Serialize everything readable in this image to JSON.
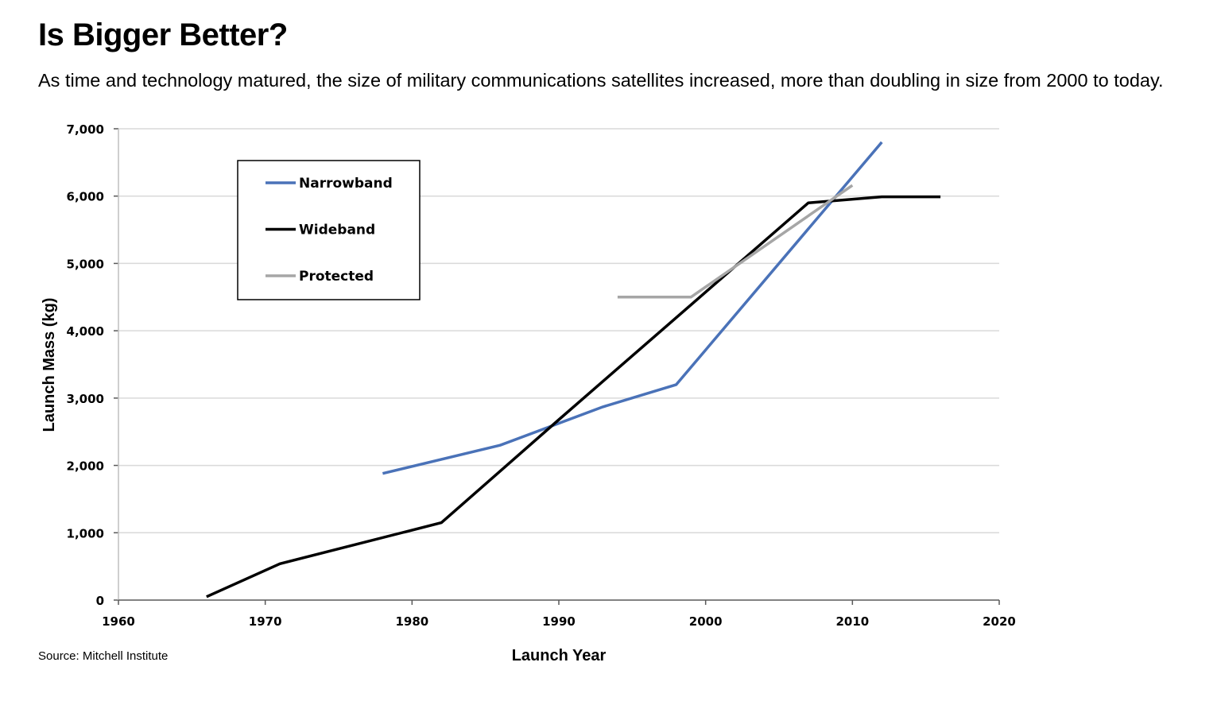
{
  "header": {
    "title": "Is Bigger Better?",
    "subtitle": "As time and technology matured, the size of military communications satellites increased, more than doubling in size from 2000 to today."
  },
  "footer": {
    "source": "Source: Mitchell Institute"
  },
  "chart_data": {
    "type": "line",
    "xlabel": "Launch Year",
    "ylabel": "Launch Mass (kg)",
    "xlim": [
      1960,
      2020
    ],
    "ylim": [
      0,
      7000
    ],
    "x_ticks": [
      1960,
      1970,
      1980,
      1990,
      2000,
      2010,
      2020
    ],
    "x_tick_labels": [
      "1960",
      "1970",
      "1980",
      "1990",
      "2000",
      "2010",
      "2020"
    ],
    "y_ticks": [
      0,
      1000,
      2000,
      3000,
      4000,
      5000,
      6000,
      7000
    ],
    "y_tick_labels": [
      "0",
      "1,000",
      "2,000",
      "3,000",
      "4,000",
      "5,000",
      "6,000",
      "7,000"
    ],
    "grid": "horizontal",
    "legend_position": "top-left",
    "series": [
      {
        "name": "Narrowband",
        "color": "#4a72b8",
        "points": [
          [
            1978,
            1880
          ],
          [
            1986,
            2300
          ],
          [
            1993,
            2870
          ],
          [
            1998,
            3200
          ],
          [
            2012,
            6800
          ]
        ]
      },
      {
        "name": "Wideband",
        "color": "#000000",
        "points": [
          [
            1966,
            50
          ],
          [
            1971,
            540
          ],
          [
            1982,
            1150
          ],
          [
            1990,
            2680
          ],
          [
            2007,
            5900
          ],
          [
            2012,
            5990
          ],
          [
            2016,
            5990
          ]
        ]
      },
      {
        "name": "Protected",
        "color": "#a6a6a6",
        "points": [
          [
            1994,
            4500
          ],
          [
            1999,
            4500
          ],
          [
            2010,
            6160
          ]
        ]
      }
    ]
  }
}
